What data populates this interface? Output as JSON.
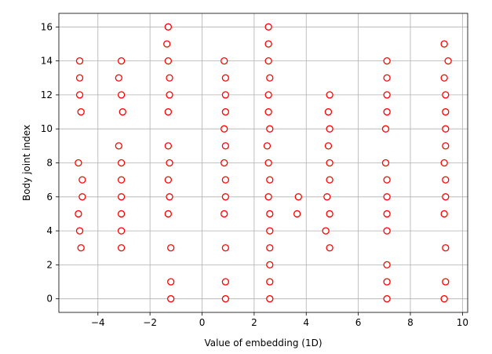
{
  "chart_data": {
    "type": "scatter",
    "title": "",
    "xlabel": "Value of embedding (1D)",
    "ylabel": "Body joint index",
    "xlim": [
      -5.5,
      10.2
    ],
    "ylim": [
      -0.8,
      16.8
    ],
    "xticks": [
      -4,
      -2,
      0,
      2,
      4,
      6,
      8,
      10
    ],
    "yticks": [
      0,
      2,
      4,
      6,
      8,
      10,
      12,
      14,
      16
    ],
    "grid": true,
    "marker": {
      "shape": "circle",
      "edge_color": "#ff0000",
      "face_color": "#ffffff"
    },
    "points": [
      [
        -4.7,
        14
      ],
      [
        -4.7,
        13
      ],
      [
        -4.7,
        12
      ],
      [
        -4.65,
        11
      ],
      [
        -4.75,
        8
      ],
      [
        -4.6,
        7
      ],
      [
        -4.6,
        6
      ],
      [
        -4.75,
        5
      ],
      [
        -4.7,
        4
      ],
      [
        -4.65,
        3
      ],
      [
        -3.1,
        14
      ],
      [
        -3.2,
        13
      ],
      [
        -3.1,
        12
      ],
      [
        -3.05,
        11
      ],
      [
        -3.2,
        9
      ],
      [
        -3.1,
        8
      ],
      [
        -3.1,
        7
      ],
      [
        -3.1,
        6
      ],
      [
        -3.1,
        5
      ],
      [
        -3.1,
        4
      ],
      [
        -3.1,
        3
      ],
      [
        -1.3,
        16
      ],
      [
        -1.35,
        15
      ],
      [
        -1.3,
        14
      ],
      [
        -1.25,
        13
      ],
      [
        -1.25,
        12
      ],
      [
        -1.3,
        11
      ],
      [
        -1.3,
        9
      ],
      [
        -1.25,
        8
      ],
      [
        -1.3,
        7
      ],
      [
        -1.25,
        6
      ],
      [
        -1.3,
        5
      ],
      [
        -1.2,
        3
      ],
      [
        -1.2,
        1
      ],
      [
        -1.2,
        0
      ],
      [
        0.85,
        14
      ],
      [
        0.9,
        13
      ],
      [
        0.9,
        12
      ],
      [
        0.9,
        11
      ],
      [
        0.85,
        10
      ],
      [
        0.9,
        9
      ],
      [
        0.85,
        8
      ],
      [
        0.9,
        7
      ],
      [
        0.9,
        6
      ],
      [
        0.85,
        5
      ],
      [
        0.9,
        3
      ],
      [
        0.9,
        1
      ],
      [
        0.9,
        0
      ],
      [
        2.55,
        16
      ],
      [
        2.55,
        15
      ],
      [
        2.55,
        14
      ],
      [
        2.6,
        13
      ],
      [
        2.55,
        12
      ],
      [
        2.55,
        11
      ],
      [
        2.6,
        10
      ],
      [
        2.5,
        9
      ],
      [
        2.55,
        8
      ],
      [
        2.6,
        7
      ],
      [
        2.55,
        6
      ],
      [
        2.6,
        5
      ],
      [
        2.6,
        4
      ],
      [
        2.6,
        3
      ],
      [
        2.6,
        2
      ],
      [
        2.6,
        1
      ],
      [
        2.6,
        0
      ],
      [
        3.7,
        6
      ],
      [
        3.65,
        5
      ],
      [
        4.9,
        12
      ],
      [
        4.85,
        11
      ],
      [
        4.9,
        10
      ],
      [
        4.85,
        9
      ],
      [
        4.9,
        8
      ],
      [
        4.9,
        7
      ],
      [
        4.8,
        6
      ],
      [
        4.9,
        5
      ],
      [
        4.75,
        4
      ],
      [
        4.9,
        3
      ],
      [
        7.1,
        14
      ],
      [
        7.1,
        13
      ],
      [
        7.1,
        12
      ],
      [
        7.1,
        11
      ],
      [
        7.05,
        10
      ],
      [
        7.05,
        8
      ],
      [
        7.1,
        7
      ],
      [
        7.1,
        6
      ],
      [
        7.1,
        5
      ],
      [
        7.1,
        4
      ],
      [
        7.1,
        2
      ],
      [
        7.1,
        1
      ],
      [
        7.1,
        0
      ],
      [
        9.3,
        15
      ],
      [
        9.45,
        14
      ],
      [
        9.3,
        13
      ],
      [
        9.35,
        12
      ],
      [
        9.35,
        11
      ],
      [
        9.35,
        10
      ],
      [
        9.35,
        9
      ],
      [
        9.3,
        8
      ],
      [
        9.35,
        7
      ],
      [
        9.35,
        6
      ],
      [
        9.3,
        5
      ],
      [
        9.35,
        3
      ],
      [
        9.35,
        1
      ],
      [
        9.3,
        0
      ]
    ]
  }
}
